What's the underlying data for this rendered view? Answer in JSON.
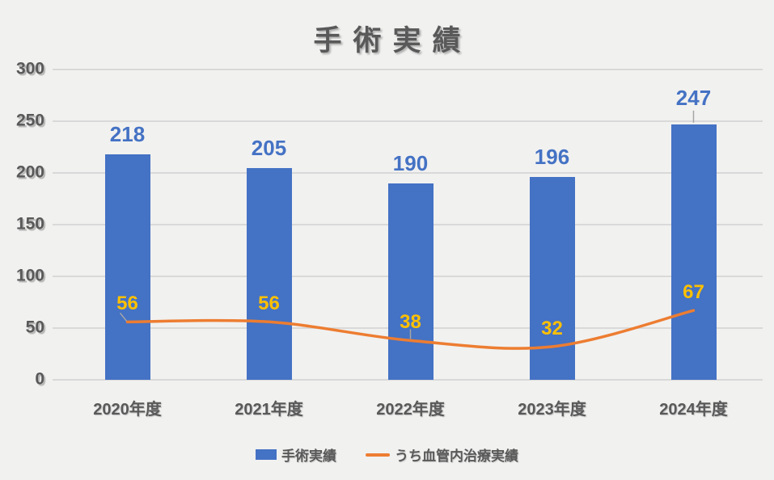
{
  "chart_data": {
    "type": "bar",
    "title": "手術実績",
    "categories": [
      "2020年度",
      "2021年度",
      "2022年度",
      "2023年度",
      "2024年度"
    ],
    "series": [
      {
        "name": "手術実績",
        "type": "bar",
        "color": "#4472C4",
        "label_color": "#4472C4",
        "values": [
          218,
          205,
          190,
          196,
          247
        ]
      },
      {
        "name": "うち血管内治療実績",
        "type": "line",
        "color": "#ED7D31",
        "label_color": "#FFC000",
        "values": [
          56,
          56,
          38,
          32,
          67
        ]
      }
    ],
    "ylim": [
      0,
      300
    ],
    "yticks": [
      0,
      50,
      100,
      150,
      200,
      250,
      300
    ],
    "grid": true,
    "legend_position": "bottom",
    "background_color": "#F1F1F0",
    "gridline_color": "#D9D9D9",
    "axis_text_color": "#595959",
    "leader_line_color": "#A6A6A6"
  }
}
